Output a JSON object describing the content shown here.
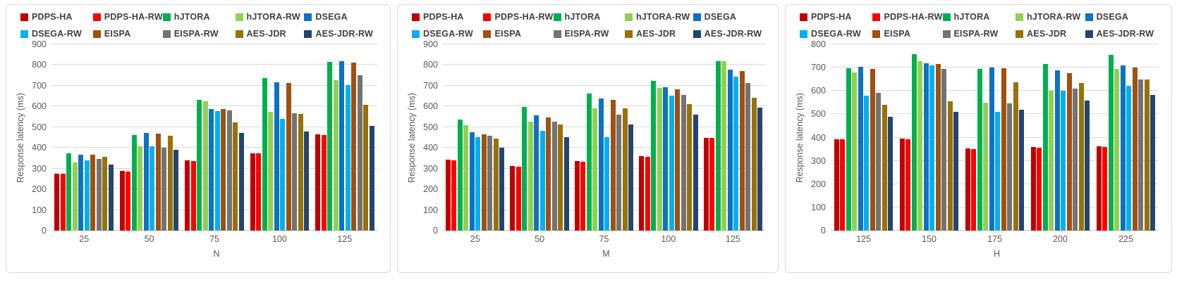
{
  "style": {
    "background": "#FFFFFF",
    "panel_border_color": "#D9D9D9",
    "grid_color": "#D9D9D9",
    "axis_line_color": "#BFBFBF",
    "tick_text_color": "#595959",
    "legend_text_color": "#3F3F3F"
  },
  "chart_data": [
    {
      "type": "bar",
      "title": "",
      "xlabel": "N",
      "ylabel": "Response latency (ms)",
      "ylim": [
        0,
        900
      ],
      "ystep": 100,
      "grid": true,
      "legend_position": "top",
      "categories": [
        "25",
        "50",
        "75",
        "100",
        "125"
      ],
      "series": [
        {
          "name": "PDPS-HA",
          "color": "#C00000",
          "values": [
            275,
            288,
            338,
            373,
            466
          ]
        },
        {
          "name": "PDPS-HA-RW",
          "color": "#FF0000",
          "values": [
            274,
            287,
            337,
            372,
            463
          ]
        },
        {
          "name": "hJTORA",
          "color": "#00B050",
          "values": [
            372,
            463,
            632,
            738,
            814
          ]
        },
        {
          "name": "hJTORA-RW",
          "color": "#92D050",
          "values": [
            331,
            409,
            624,
            574,
            727
          ]
        },
        {
          "name": "DSEGA",
          "color": "#0F72C1",
          "values": [
            367,
            471,
            588,
            716,
            817
          ]
        },
        {
          "name": "DSEGA-RW",
          "color": "#00B0F0",
          "values": [
            341,
            408,
            577,
            539,
            703
          ]
        },
        {
          "name": "EISPA",
          "color": "#A0500F",
          "values": [
            368,
            469,
            587,
            713,
            811
          ]
        },
        {
          "name": "EISPA-RW",
          "color": "#737373",
          "values": [
            346,
            400,
            581,
            566,
            749
          ]
        },
        {
          "name": "AES-JDR",
          "color": "#97710A",
          "values": [
            358,
            457,
            524,
            564,
            607
          ]
        },
        {
          "name": "AES-JDR-RW",
          "color": "#24456E",
          "values": [
            320,
            392,
            471,
            480,
            505
          ]
        }
      ]
    },
    {
      "type": "bar",
      "title": "",
      "xlabel": "M",
      "ylabel": "Response latency (ms)",
      "ylim": [
        0,
        900
      ],
      "ystep": 100,
      "grid": true,
      "legend_position": "top",
      "categories": [
        "25",
        "50",
        "75",
        "100",
        "125"
      ],
      "series": [
        {
          "name": "PDPS-HA",
          "color": "#C00000",
          "values": [
            343,
            311,
            337,
            361,
            449
          ]
        },
        {
          "name": "PDPS-HA-RW",
          "color": "#FF0000",
          "values": [
            341,
            308,
            334,
            358,
            448
          ]
        },
        {
          "name": "hJTORA",
          "color": "#00B050",
          "values": [
            536,
            598,
            663,
            723,
            820
          ]
        },
        {
          "name": "hJTORA-RW",
          "color": "#92D050",
          "values": [
            509,
            527,
            590,
            691,
            820
          ]
        },
        {
          "name": "DSEGA",
          "color": "#0F72C1",
          "values": [
            474,
            558,
            639,
            694,
            777
          ]
        },
        {
          "name": "DSEGA-RW",
          "color": "#00B0F0",
          "values": [
            452,
            483,
            452,
            651,
            745
          ]
        },
        {
          "name": "EISPA",
          "color": "#A0500F",
          "values": [
            465,
            548,
            631,
            684,
            772
          ]
        },
        {
          "name": "EISPA-RW",
          "color": "#737373",
          "values": [
            457,
            528,
            560,
            654,
            713
          ]
        },
        {
          "name": "AES-JDR",
          "color": "#97710A",
          "values": [
            446,
            514,
            591,
            613,
            641
          ]
        },
        {
          "name": "AES-JDR-RW",
          "color": "#24456E",
          "values": [
            400,
            452,
            512,
            562,
            595
          ]
        }
      ]
    },
    {
      "type": "bar",
      "title": "",
      "xlabel": "H",
      "ylabel": "Response latency (ms)",
      "ylim": [
        0,
        800
      ],
      "ystep": 100,
      "grid": true,
      "legend_position": "top",
      "categories": [
        "125",
        "150",
        "175",
        "200",
        "225"
      ],
      "series": [
        {
          "name": "PDPS-HA",
          "color": "#C00000",
          "values": [
            393,
            395,
            354,
            359,
            361
          ]
        },
        {
          "name": "PDPS-HA-RW",
          "color": "#FF0000",
          "values": [
            391,
            392,
            351,
            357,
            359
          ]
        },
        {
          "name": "hJTORA",
          "color": "#00B050",
          "values": [
            697,
            757,
            695,
            716,
            754
          ]
        },
        {
          "name": "hJTORA-RW",
          "color": "#92D050",
          "values": [
            678,
            728,
            550,
            601,
            695
          ]
        },
        {
          "name": "DSEGA",
          "color": "#0F72C1",
          "values": [
            704,
            719,
            701,
            687,
            709
          ]
        },
        {
          "name": "DSEGA-RW",
          "color": "#00B0F0",
          "values": [
            579,
            709,
            511,
            600,
            621
          ]
        },
        {
          "name": "EISPA",
          "color": "#A0500F",
          "values": [
            694,
            715,
            698,
            677,
            700
          ]
        },
        {
          "name": "EISPA-RW",
          "color": "#737373",
          "values": [
            592,
            693,
            545,
            609,
            649
          ]
        },
        {
          "name": "AES-JDR",
          "color": "#97710A",
          "values": [
            540,
            556,
            636,
            635,
            649
          ]
        },
        {
          "name": "AES-JDR-RW",
          "color": "#24456E",
          "values": [
            490,
            509,
            518,
            558,
            582
          ]
        }
      ]
    }
  ]
}
